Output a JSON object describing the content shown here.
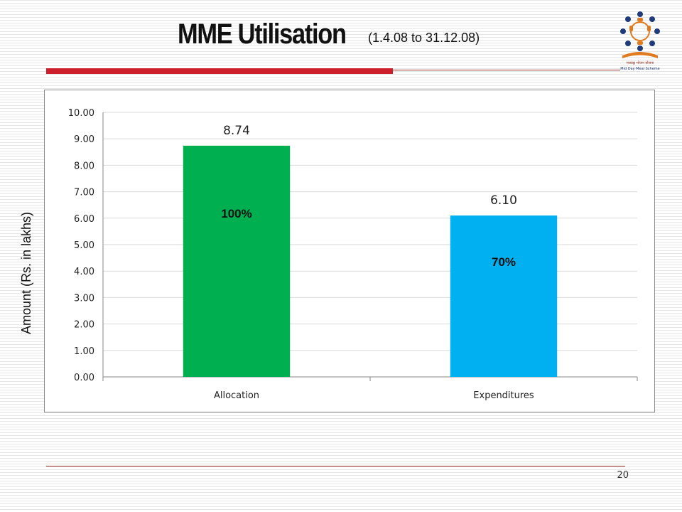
{
  "slide": {
    "title_main": "MME Utilisation",
    "title_sub": "(1.4.08 to 31.12.08)",
    "page_number": "20",
    "logo_icon": "mid-day-meal-scheme-logo-icon",
    "logo_text_line1": "मध्याह्न भोजन योजना",
    "logo_text_line2": "Mid Day Meal Scheme"
  },
  "colors": {
    "allocation": "#00b050",
    "expenditures": "#00b0f0",
    "accent_red": "#cc1f2b"
  },
  "chart_data": {
    "type": "bar",
    "title": "",
    "xlabel": "",
    "ylabel": "Amount (Rs. in lakhs)",
    "categories": [
      "Allocation",
      "Expenditures"
    ],
    "values": [
      8.74,
      6.1
    ],
    "value_labels": [
      "8.74",
      "6.10"
    ],
    "percent_labels": [
      "100%",
      "70%"
    ],
    "ylim": [
      0,
      10
    ],
    "yticks": [
      "0.00",
      "1.00",
      "2.00",
      "3.00",
      "4.00",
      "5.00",
      "6.00",
      "7.00",
      "8.00",
      "9.00",
      "10.00"
    ],
    "grid": true,
    "legend": "none"
  }
}
